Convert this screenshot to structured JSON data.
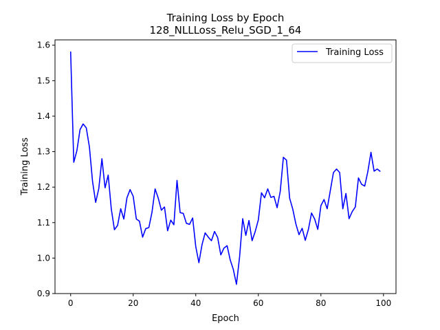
{
  "chart_data": {
    "type": "line",
    "title": "Training Loss by Epoch",
    "subtitle": "128_NLLLoss_Relu_SGD_1_64",
    "xlabel": "Epoch",
    "ylabel": "Training Loss",
    "xlim": [
      -5,
      104
    ],
    "ylim": [
      0.9,
      1.615
    ],
    "x_ticks": [
      0,
      20,
      40,
      60,
      80,
      100
    ],
    "y_ticks": [
      0.9,
      1.0,
      1.1,
      1.2,
      1.3,
      1.4,
      1.5,
      1.6
    ],
    "grid": false,
    "legend": {
      "position": "top-right"
    },
    "series": [
      {
        "name": "Training Loss",
        "color": "#0000ff",
        "x": [
          0,
          1,
          2,
          3,
          4,
          5,
          6,
          7,
          8,
          9,
          10,
          11,
          12,
          13,
          14,
          15,
          16,
          17,
          18,
          19,
          20,
          21,
          22,
          23,
          24,
          25,
          26,
          27,
          28,
          29,
          30,
          31,
          32,
          33,
          34,
          35,
          36,
          37,
          38,
          39,
          40,
          41,
          42,
          43,
          44,
          45,
          46,
          47,
          48,
          49,
          50,
          51,
          52,
          53,
          54,
          55,
          56,
          57,
          58,
          59,
          60,
          61,
          62,
          63,
          64,
          65,
          66,
          67,
          68,
          69,
          70,
          71,
          72,
          73,
          74,
          75,
          76,
          77,
          78,
          79,
          80,
          81,
          82,
          83,
          84,
          85,
          86,
          87,
          88,
          89,
          90,
          91,
          92,
          93,
          94,
          95,
          96,
          97,
          98,
          99
        ],
        "values": [
          1.582,
          1.27,
          1.303,
          1.362,
          1.378,
          1.367,
          1.313,
          1.216,
          1.157,
          1.196,
          1.28,
          1.198,
          1.234,
          1.138,
          1.08,
          1.092,
          1.139,
          1.11,
          1.17,
          1.193,
          1.174,
          1.11,
          1.104,
          1.059,
          1.083,
          1.086,
          1.129,
          1.195,
          1.169,
          1.135,
          1.144,
          1.077,
          1.107,
          1.094,
          1.219,
          1.128,
          1.126,
          1.098,
          1.095,
          1.113,
          1.032,
          0.987,
          1.038,
          1.071,
          1.059,
          1.049,
          1.075,
          1.058,
          1.009,
          1.028,
          1.035,
          0.995,
          0.968,
          0.926,
          1.003,
          1.111,
          1.064,
          1.106,
          1.049,
          1.075,
          1.108,
          1.184,
          1.17,
          1.195,
          1.171,
          1.174,
          1.142,
          1.188,
          1.284,
          1.276,
          1.169,
          1.138,
          1.096,
          1.066,
          1.084,
          1.05,
          1.081,
          1.127,
          1.11,
          1.081,
          1.148,
          1.165,
          1.139,
          1.19,
          1.241,
          1.251,
          1.241,
          1.139,
          1.182,
          1.111,
          1.131,
          1.144,
          1.226,
          1.208,
          1.203,
          1.244,
          1.298,
          1.245,
          1.251,
          1.244
        ]
      }
    ]
  }
}
